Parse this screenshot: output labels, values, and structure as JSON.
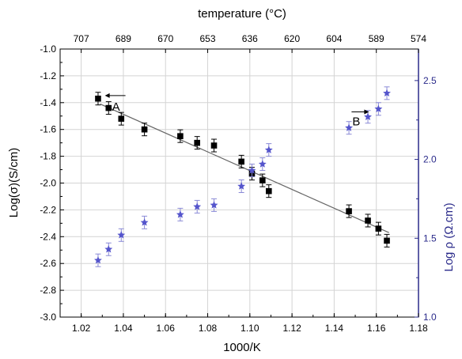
{
  "chart_data": {
    "type": "scatter",
    "xlabel": "1000/K",
    "x_ticks": [
      "1.02",
      "1.04",
      "1.06",
      "1.08",
      "1.10",
      "1.12",
      "1.14",
      "1.16",
      "1.18"
    ],
    "xlim": [
      1.01,
      1.18
    ],
    "ylabel_left": "Log(σ)(S/cm)",
    "ylim_left": [
      -3.0,
      -1.0
    ],
    "y_ticks_left": [
      "-1.0",
      "-1.2",
      "-1.4",
      "-1.6",
      "-1.8",
      "-2.0",
      "-2.2",
      "-2.4",
      "-2.6",
      "-2.8",
      "-3.0"
    ],
    "ylabel_right": "Log ρ (Ω.cm)",
    "ylim_right": [
      1.0,
      2.7
    ],
    "y_ticks_right": [
      "1.0",
      "1.5",
      "2.0",
      "2.5"
    ],
    "xlabel_top": "temperature (°C)",
    "x_ticks_top": [
      "707",
      "689",
      "670",
      "653",
      "636",
      "620",
      "604",
      "589",
      "574"
    ],
    "grid": true,
    "colors": {
      "series_a": "#000000",
      "series_b": "#5555cc",
      "fit_line": "#666666",
      "right_axis": "#2a2a8a",
      "grid": "#d4d4d4"
    },
    "annotations": [
      {
        "text": "A",
        "x": 1.0365,
        "y_left": -1.43
      },
      {
        "text": "B",
        "x": 1.1505,
        "y_left": -1.54
      }
    ],
    "series": [
      {
        "axis": "left",
        "marker": "square",
        "x": [
          1.028,
          1.033,
          1.039,
          1.05,
          1.067,
          1.075,
          1.083,
          1.096,
          1.101,
          1.106,
          1.109,
          1.147,
          1.156,
          1.161,
          1.165
        ],
        "y": [
          -1.37,
          -1.44,
          -1.52,
          -1.6,
          -1.65,
          -1.7,
          -1.72,
          -1.84,
          -1.93,
          -1.98,
          -2.06,
          -2.21,
          -2.28,
          -2.34,
          -2.43
        ]
      },
      {
        "axis": "right",
        "marker": "star",
        "x": [
          1.028,
          1.033,
          1.039,
          1.05,
          1.067,
          1.075,
          1.083,
          1.096,
          1.101,
          1.106,
          1.109,
          1.147,
          1.156,
          1.161,
          1.165
        ],
        "y": [
          1.36,
          1.43,
          1.52,
          1.6,
          1.65,
          1.7,
          1.71,
          1.83,
          1.93,
          1.97,
          2.06,
          2.2,
          2.27,
          2.32,
          2.42
        ]
      }
    ],
    "fit_line": {
      "x": [
        1.029,
        1.166
      ],
      "y": [
        -1.41,
        -2.37
      ]
    }
  }
}
